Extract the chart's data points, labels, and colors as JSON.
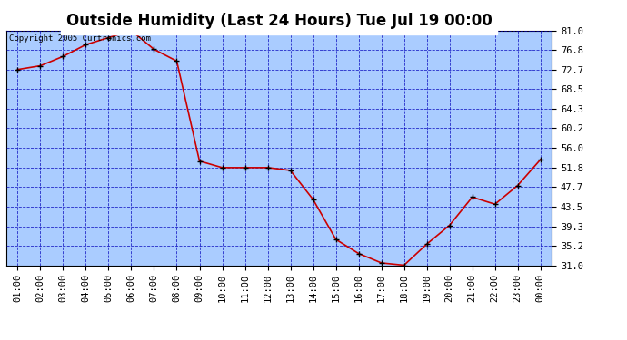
{
  "title": "Outside Humidity (Last 24 Hours) Tue Jul 19 00:00",
  "copyright": "Copyright 2005 Curtronics.com",
  "x_labels": [
    "01:00",
    "02:00",
    "03:00",
    "04:00",
    "05:00",
    "06:00",
    "07:00",
    "08:00",
    "09:00",
    "10:00",
    "11:00",
    "12:00",
    "13:00",
    "14:00",
    "15:00",
    "16:00",
    "17:00",
    "18:00",
    "19:00",
    "20:00",
    "21:00",
    "22:00",
    "23:00",
    "00:00"
  ],
  "y_values": [
    72.7,
    73.5,
    75.5,
    78.0,
    79.5,
    81.0,
    77.0,
    74.5,
    53.2,
    51.8,
    51.8,
    51.8,
    51.2,
    45.0,
    36.5,
    33.5,
    31.5,
    31.0,
    35.5,
    39.5,
    45.5,
    44.0,
    48.0,
    53.5
  ],
  "line_color": "#cc0000",
  "marker_color": "#000000",
  "plot_bg_color": "#aaccff",
  "fig_bg_color": "#ffffff",
  "grid_color": "#0000bb",
  "border_color": "#000000",
  "title_color": "#000000",
  "yticks": [
    31.0,
    35.2,
    39.3,
    43.5,
    47.7,
    51.8,
    56.0,
    60.2,
    64.3,
    68.5,
    72.7,
    76.8,
    81.0
  ],
  "ymin": 31.0,
  "ymax": 81.0,
  "title_fontsize": 12,
  "copyright_fontsize": 6.5,
  "tick_fontsize": 7.5
}
